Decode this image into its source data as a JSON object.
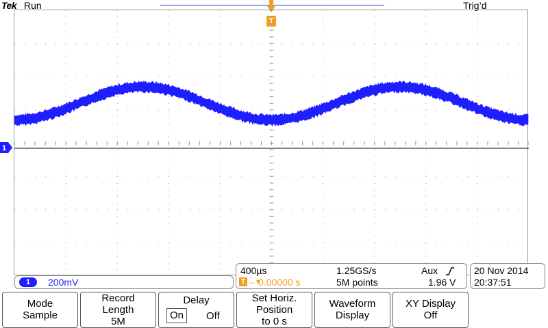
{
  "header": {
    "brand": "Tek",
    "run_status": "Run",
    "trigger_status": "Trig’d"
  },
  "trigger_marker": {
    "label": "T"
  },
  "channel1": {
    "badge": "1",
    "scale": "200mV",
    "ground_marker": "1",
    "color": "#1e1eff"
  },
  "horizontal": {
    "time_per_div": "400µs",
    "sample_rate": "1.25GS/s",
    "trigger_source": "Aux",
    "trigger_badge": "T",
    "trigger_arrow": "→▾",
    "position": "0.00000 s",
    "record_points": "5M points",
    "trigger_level": "1.96 V"
  },
  "datetime": {
    "date": "20 Nov 2014",
    "time": "20:37:51"
  },
  "menu": {
    "mode": {
      "line1": "Mode",
      "line2": "Sample"
    },
    "record_length": {
      "line1": "Record",
      "line2": "Length",
      "line3": "5M"
    },
    "delay": {
      "title": "Delay",
      "on": "On",
      "off": "Off",
      "selected": "On"
    },
    "set_horiz": {
      "line1": "Set Horiz.",
      "line2": "Position",
      "line3": "to 0 s"
    },
    "waveform_display": {
      "line1": "Waveform",
      "line2": "Display"
    },
    "xy_display": {
      "line1": "XY Display",
      "line2": "Off"
    }
  },
  "colors": {
    "trace": "#1e1eff",
    "trigger": "#f0a020",
    "graticule": "#9a9a9a"
  },
  "waveform": {
    "shape": "sine",
    "cycles_visible": 2,
    "amplitude_divisions": 1.0,
    "offset_divisions_above_ground": 0.85,
    "phase_at_left": "minimum"
  }
}
